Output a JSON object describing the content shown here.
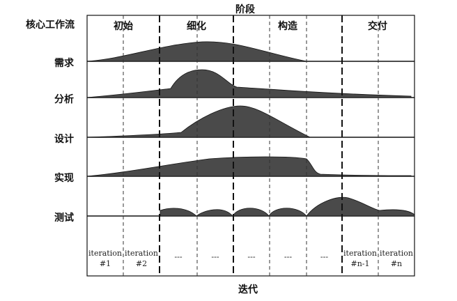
{
  "title_top": "阶段",
  "title_bottom": "迭代",
  "corner_label": "核心工作流",
  "phases": [
    "初始",
    "细化",
    "构造",
    "交付"
  ],
  "workflows": [
    "需求",
    "分析",
    "设计",
    "实现",
    "测试"
  ],
  "iterations": [
    [
      "iteration",
      "#1"
    ],
    [
      "iteration",
      "#2"
    ],
    [
      "---"
    ],
    [
      "---"
    ],
    [
      "---"
    ],
    [
      "---"
    ],
    [
      "---"
    ],
    [
      "iteration",
      "#n-1"
    ],
    [
      "iteration",
      "#n"
    ]
  ],
  "colors": {
    "fill": "#4a4a4a",
    "line": "#111111"
  }
}
